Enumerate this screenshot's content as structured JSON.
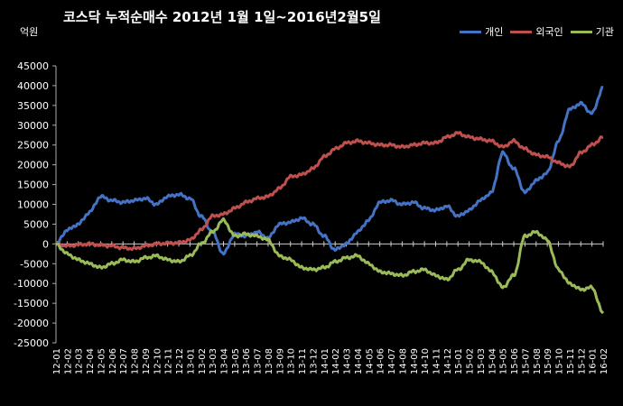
{
  "chart_data": {
    "type": "line",
    "title": "코스닥  누적순매수  2012년 1월 1일~2016년2월5일",
    "unit_label": "억원",
    "ylim": [
      -25000,
      45000
    ],
    "yticks": [
      45000,
      40000,
      35000,
      30000,
      25000,
      20000,
      15000,
      10000,
      5000,
      0,
      -5000,
      -10000,
      -15000,
      -20000,
      -25000
    ],
    "grid": false,
    "legend_position": "top-right",
    "categories": [
      "12-01",
      "12-02",
      "12-03",
      "12-04",
      "12-05",
      "12-06",
      "12-07",
      "12-08",
      "12-09",
      "12-10",
      "12-11",
      "12-12",
      "13-01",
      "13-02",
      "13-03",
      "13-04",
      "13-05",
      "13-06",
      "13-07",
      "13-08",
      "13-09",
      "13-10",
      "13-11",
      "13-12",
      "14-01",
      "14-02",
      "14-03",
      "14-04",
      "14-05",
      "14-06",
      "14-07",
      "14-08",
      "14-09",
      "14-10",
      "14-11",
      "14-12",
      "15-01",
      "15-02",
      "15-03",
      "15-04",
      "15-05",
      "15-06",
      "15-07",
      "15-08",
      "15-09",
      "15-10",
      "15-11",
      "15-12",
      "16-01",
      "16-02"
    ],
    "series": [
      {
        "name": "개인",
        "color": "#4472C4",
        "values": [
          0,
          3500,
          5000,
          8000,
          12000,
          11000,
          10500,
          11000,
          11500,
          10000,
          12000,
          12500,
          11500,
          7000,
          3000,
          -2500,
          2500,
          2000,
          3000,
          1500,
          5000,
          5500,
          6500,
          5000,
          2000,
          -1500,
          0,
          3000,
          6000,
          10500,
          11000,
          10000,
          10500,
          9000,
          8500,
          9500,
          7000,
          8500,
          11000,
          13000,
          23000,
          19000,
          13000,
          16000,
          18000,
          26000,
          34000,
          35500,
          33000,
          39500
        ]
      },
      {
        "name": "외국인",
        "color": "#C0504D",
        "values": [
          0,
          -500,
          -200,
          0,
          -300,
          -500,
          -1000,
          -1200,
          -500,
          0,
          200,
          300,
          1000,
          3500,
          7000,
          7500,
          9000,
          10500,
          11500,
          12000,
          14000,
          17000,
          17500,
          19000,
          22000,
          24000,
          25500,
          26000,
          25500,
          25000,
          25000,
          24500,
          25000,
          25500,
          25500,
          27000,
          28000,
          27000,
          26500,
          26000,
          24500,
          26000,
          24000,
          22500,
          22000,
          20500,
          19500,
          23000,
          25000,
          27000
        ]
      },
      {
        "name": "기관",
        "color": "#9BBB59",
        "values": [
          0,
          -2500,
          -4000,
          -5000,
          -6000,
          -5000,
          -4000,
          -4500,
          -3500,
          -3000,
          -4000,
          -4500,
          -3000,
          0,
          3000,
          6000,
          2000,
          2500,
          2000,
          1000,
          -3000,
          -4000,
          -6000,
          -6500,
          -6000,
          -4500,
          -3500,
          -3000,
          -5000,
          -7000,
          -7500,
          -8000,
          -7000,
          -6500,
          -8000,
          -9000,
          -6500,
          -4000,
          -4500,
          -7000,
          -11000,
          -8000,
          2000,
          3000,
          1000,
          -6500,
          -10000,
          -11500,
          -11000,
          -17500
        ]
      }
    ]
  }
}
